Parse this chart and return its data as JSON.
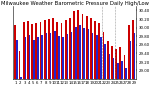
{
  "title": "Milwaukee Weather Barometric Pressure Daily High/Low",
  "days": [
    "1",
    "2",
    "3",
    "4",
    "5",
    "6",
    "7",
    "8",
    "9",
    "10",
    "11",
    "12",
    "13",
    "14",
    "15",
    "16",
    "17",
    "18",
    "19",
    "20",
    "21",
    "22",
    "23",
    "24",
    "25",
    "26",
    "27",
    "28",
    "29"
  ],
  "highs": [
    30.05,
    29.45,
    30.12,
    30.15,
    30.08,
    30.1,
    30.13,
    30.18,
    30.2,
    30.22,
    30.12,
    30.1,
    30.18,
    30.22,
    30.38,
    30.4,
    30.32,
    30.28,
    30.22,
    30.15,
    30.1,
    29.9,
    29.68,
    29.58,
    29.5,
    29.55,
    29.35,
    30.05,
    30.18
  ],
  "lows": [
    29.72,
    28.85,
    29.78,
    29.82,
    29.72,
    29.78,
    29.82,
    29.88,
    29.88,
    29.92,
    29.8,
    29.78,
    29.85,
    29.9,
    30.02,
    30.05,
    30.0,
    29.96,
    29.88,
    29.82,
    29.78,
    29.62,
    29.38,
    29.28,
    29.18,
    29.22,
    29.05,
    29.68,
    29.88
  ],
  "high_color": "#cc0000",
  "low_color": "#2222cc",
  "bg_color": "#ffffff",
  "ymin": 28.8,
  "ymax": 30.5,
  "ytick_values": [
    29.0,
    29.2,
    29.4,
    29.6,
    29.8,
    30.0,
    30.2,
    30.4
  ],
  "ytick_labels": [
    "29.00",
    "29.20",
    "29.40",
    "29.60",
    "29.80",
    "30.00",
    "30.20",
    "30.40"
  ],
  "dashed_cols": [
    21,
    24
  ],
  "title_fontsize": 3.8,
  "tick_fontsize": 2.8,
  "bar_width": 0.4
}
